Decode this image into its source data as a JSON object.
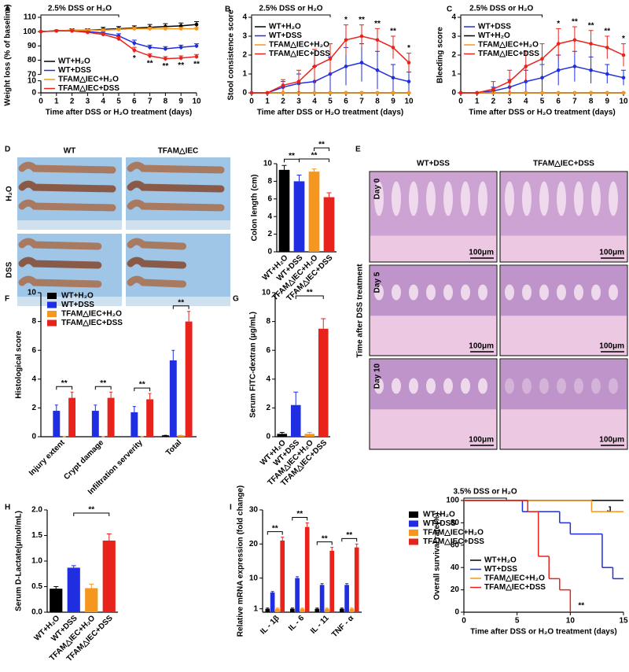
{
  "chart_data": [
    {
      "panel": "A",
      "type": "line",
      "ylabel": "Weight loss (% of baseline)",
      "xlabel": "Time after DSS or H₂O treatment (days)",
      "x": [
        0,
        1,
        2,
        3,
        4,
        5,
        6,
        7,
        8,
        9,
        10
      ],
      "xlim": [
        0,
        10
      ],
      "xticks": [
        0,
        1,
        2,
        3,
        4,
        5,
        6,
        7,
        8,
        9,
        10
      ],
      "ylim": [
        0,
        110
      ],
      "yticks": [
        0,
        10,
        70,
        80,
        90,
        100,
        110
      ],
      "axis_break": [
        10,
        70
      ],
      "period": {
        "text": "2.5% DSS or H₂O",
        "x": [
          0,
          5
        ]
      },
      "series": [
        {
          "name": "WT+H₂O",
          "color": "#000000",
          "values": [
            100,
            100.5,
            101,
            101,
            101.5,
            102,
            102.5,
            103,
            103.5,
            104,
            105
          ],
          "errors": [
            0,
            0.5,
            1,
            1,
            1.5,
            1.5,
            1.5,
            2,
            2,
            2,
            2
          ]
        },
        {
          "name": "WT+DSS",
          "color": "#1f2ee0",
          "values": [
            100,
            100.5,
            100.5,
            100,
            99,
            97,
            92,
            89,
            88,
            89,
            90
          ],
          "errors": [
            0,
            0.5,
            0.5,
            0.8,
            1,
            1.5,
            2,
            1.5,
            1.5,
            1.5,
            1.5
          ]
        },
        {
          "name": "TFAM△IEC+H₂O",
          "color": "#f5961e",
          "values": [
            100,
            100.5,
            101,
            101,
            101,
            101.5,
            102,
            102,
            102,
            102,
            102
          ],
          "errors": [
            0,
            0.5,
            0.5,
            0.5,
            0.5,
            0.5,
            1,
            1,
            1,
            1,
            1
          ]
        },
        {
          "name": "TFAM△IEC+DSS",
          "color": "#e8231c",
          "values": [
            100,
            100.5,
            100.5,
            99.5,
            98,
            95,
            87,
            83,
            81,
            81.5,
            82.5
          ],
          "errors": [
            0,
            0.5,
            0.5,
            0.8,
            1,
            1.5,
            2,
            1.5,
            1.5,
            1.5,
            1.5
          ]
        }
      ],
      "annotations": [
        {
          "text": "*",
          "x": 6
        },
        {
          "text": "**",
          "x": 7
        },
        {
          "text": "**",
          "x": 8
        },
        {
          "text": "**",
          "x": 9
        },
        {
          "text": "**",
          "x": 10
        }
      ]
    },
    {
      "panel": "B",
      "type": "line",
      "ylabel": "Stool consistence score",
      "xlabel": "Time after DSS or H₂O treatment (days)",
      "x": [
        0,
        1,
        2,
        3,
        4,
        5,
        6,
        7,
        8,
        9,
        10
      ],
      "xlim": [
        0,
        10
      ],
      "xticks": [
        0,
        1,
        2,
        3,
        4,
        5,
        6,
        7,
        8,
        9,
        10
      ],
      "ylim": [
        0,
        4
      ],
      "yticks": [
        0,
        1,
        2,
        3,
        4
      ],
      "period": {
        "text": "2.5% DSS or H₂O",
        "x": [
          0,
          5
        ]
      },
      "series": [
        {
          "name": "WT+H₂O",
          "color": "#000000",
          "values": [
            0,
            0,
            0,
            0,
            0,
            0,
            0,
            0,
            0,
            0,
            0
          ],
          "errors": [
            0,
            0,
            0,
            0,
            0,
            0,
            0,
            0,
            0,
            0,
            0
          ]
        },
        {
          "name": "WT+DSS",
          "color": "#1f2ee0",
          "values": [
            0,
            0,
            0.3,
            0.5,
            0.6,
            1.0,
            1.4,
            1.6,
            1.2,
            0.8,
            0.6
          ],
          "errors": [
            0,
            0,
            0.3,
            0.5,
            0.8,
            0.9,
            1.0,
            1.0,
            1.0,
            0.7,
            0.5
          ]
        },
        {
          "name": "TFAM△IEC+H₂O",
          "color": "#f5961e",
          "values": [
            0,
            0,
            0,
            0,
            0,
            0,
            0,
            0,
            0,
            0,
            0
          ],
          "errors": [
            0,
            0,
            0,
            0,
            0,
            0,
            0,
            0,
            0,
            0,
            0
          ]
        },
        {
          "name": "TFAM△IEC+DSS",
          "color": "#e8231c",
          "values": [
            0,
            0,
            0.4,
            0.6,
            1.4,
            1.8,
            2.8,
            3.0,
            2.8,
            2.4,
            1.6
          ],
          "errors": [
            0,
            0,
            0.3,
            0.6,
            0.9,
            0.8,
            0.8,
            0.6,
            0.6,
            0.6,
            0.5
          ]
        }
      ],
      "annotations": [
        {
          "text": "*",
          "x": 6
        },
        {
          "text": "**",
          "x": 7
        },
        {
          "text": "**",
          "x": 8
        },
        {
          "text": "**",
          "x": 9
        },
        {
          "text": "*",
          "x": 10
        }
      ]
    },
    {
      "panel": "C",
      "type": "line",
      "ylabel": "Bleeding score",
      "xlabel": "Time after DSS or H₂O treatment (days)",
      "x": [
        0,
        1,
        2,
        3,
        4,
        5,
        6,
        7,
        8,
        9,
        10
      ],
      "xlim": [
        0,
        10
      ],
      "xticks": [
        0,
        1,
        2,
        3,
        4,
        5,
        6,
        7,
        8,
        9,
        10
      ],
      "ylim": [
        0,
        4
      ],
      "yticks": [
        0,
        1,
        2,
        3,
        4
      ],
      "period": {
        "text": "2.5% DSS or H₂O",
        "x": [
          0,
          5
        ]
      },
      "series": [
        {
          "name": "WT+DSS",
          "color": "#1f2ee0",
          "values": [
            0,
            0,
            0.1,
            0.3,
            0.6,
            0.8,
            1.2,
            1.4,
            1.2,
            1.0,
            0.8
          ],
          "errors": [
            0,
            0,
            0.2,
            0.4,
            0.6,
            0.7,
            0.8,
            0.8,
            0.7,
            0.5,
            0.4
          ]
        },
        {
          "name": "WT+H₂O",
          "color": "#000000",
          "values": [
            0,
            0,
            0,
            0,
            0,
            0,
            0,
            0,
            0,
            0,
            0
          ],
          "errors": [
            0,
            0,
            0,
            0,
            0,
            0,
            0,
            0,
            0,
            0,
            0
          ]
        },
        {
          "name": "TFAM△IEC+H₂O",
          "color": "#f5961e",
          "values": [
            0,
            0,
            0,
            0,
            0,
            0,
            0,
            0,
            0,
            0,
            0
          ],
          "errors": [
            0,
            0,
            0,
            0,
            0,
            0,
            0,
            0,
            0,
            0,
            0
          ]
        },
        {
          "name": "TFAM△IEC+DSS",
          "color": "#e8231c",
          "values": [
            0,
            0,
            0.2,
            0.6,
            1.4,
            1.8,
            2.6,
            2.8,
            2.6,
            2.4,
            2.0
          ],
          "errors": [
            0,
            0,
            0.4,
            0.6,
            0.8,
            0.8,
            0.8,
            0.7,
            0.7,
            0.6,
            0.6
          ]
        }
      ],
      "annotations": [
        {
          "text": "*",
          "x": 6
        },
        {
          "text": "**",
          "x": 7
        },
        {
          "text": "**",
          "x": 8
        },
        {
          "text": "**",
          "x": 9
        },
        {
          "text": "*",
          "x": 10
        }
      ]
    },
    {
      "panel": "D",
      "type": "bar",
      "ylabel": "Colon length (cm)",
      "categories": [
        "WT+H₂O",
        "WT+DSS",
        "TFAM△IEC+H₂O",
        "TFAM△IEC+DSS"
      ],
      "values": [
        9.3,
        8.0,
        9.1,
        6.2
      ],
      "errors": [
        0.5,
        0.7,
        0.3,
        0.5
      ],
      "colors": [
        "#000000",
        "#1f2ee0",
        "#f5961e",
        "#e8231c"
      ],
      "ylim": [
        0,
        10
      ],
      "yticks": [
        0,
        2,
        4,
        6,
        8,
        10
      ],
      "brackets": [
        {
          "text": "**",
          "between": [
            0,
            1
          ]
        },
        {
          "text": "**",
          "between": [
            1,
            3
          ]
        },
        {
          "text": "**",
          "between": [
            2,
            3
          ]
        }
      ]
    },
    {
      "panel": "F",
      "type": "grouped_bar",
      "ylabel": "Histological score",
      "categories": [
        "Injury extent",
        "Crypt damage",
        "Infiltration serverity",
        "Total"
      ],
      "ylim": [
        0,
        10
      ],
      "yticks": [
        0,
        2,
        4,
        6,
        8,
        10
      ],
      "series": [
        {
          "name": "WT+H₂O",
          "color": "#000000",
          "values": [
            0,
            0,
            0,
            0.1
          ],
          "errors": [
            0,
            0,
            0,
            0
          ]
        },
        {
          "name": "WT+DSS",
          "color": "#1f2ee0",
          "values": [
            1.8,
            1.8,
            1.7,
            5.3
          ],
          "errors": [
            0.4,
            0.4,
            0.4,
            0.7
          ]
        },
        {
          "name": "TFAM△IEC+H₂O",
          "color": "#f5961e",
          "values": [
            0,
            0,
            0,
            0.1
          ],
          "errors": [
            0,
            0,
            0,
            0
          ]
        },
        {
          "name": "TFAM△IEC+DSS",
          "color": "#e8231c",
          "values": [
            2.7,
            2.7,
            2.6,
            8.0
          ],
          "errors": [
            0.4,
            0.4,
            0.4,
            0.7
          ]
        }
      ],
      "brackets": [
        {
          "text": "**",
          "category": 0,
          "series": [
            1,
            3
          ]
        },
        {
          "text": "**",
          "category": 1,
          "series": [
            1,
            3
          ]
        },
        {
          "text": "**",
          "category": 2,
          "series": [
            1,
            3
          ]
        },
        {
          "text": "**",
          "category": 3,
          "series": [
            1,
            3
          ]
        }
      ]
    },
    {
      "panel": "G",
      "type": "bar",
      "ylabel": "Serum FITC-dextran (μg/mL)",
      "categories": [
        "WT+H₂O",
        "WT+DSS",
        "TFAM△IEC+H₂O",
        "TFAM△IEC+DSS"
      ],
      "values": [
        0.2,
        2.2,
        0.2,
        7.5
      ],
      "errors": [
        0.1,
        0.9,
        0.1,
        0.7
      ],
      "colors": [
        "#000000",
        "#1f2ee0",
        "#f5961e",
        "#e8231c"
      ],
      "ylim": [
        0,
        10
      ],
      "yticks": [
        0,
        2,
        4,
        6,
        8,
        10
      ],
      "brackets": [
        {
          "text": "**",
          "between": [
            1,
            3
          ]
        }
      ]
    },
    {
      "panel": "H",
      "type": "bar",
      "ylabel": "Serum D-Lactate(μmol/mL)",
      "categories": [
        "WT+H₂O",
        "WT+DSS",
        "TFAM△IEC+H₂O",
        "TFAM△IEC+DSS"
      ],
      "values": [
        0.46,
        0.87,
        0.47,
        1.4
      ],
      "errors": [
        0.04,
        0.04,
        0.08,
        0.13
      ],
      "colors": [
        "#000000",
        "#1f2ee0",
        "#f5961e",
        "#e8231c"
      ],
      "ylim": [
        0,
        2
      ],
      "yticks": [
        {
          "value": 0,
          "label": "0.0"
        },
        0.5,
        {
          "value": 1,
          "label": "1.0"
        },
        1.5,
        {
          "value": 2,
          "label": "2.0"
        }
      ],
      "brackets": [
        {
          "text": "**",
          "between": [
            1,
            3
          ]
        }
      ]
    },
    {
      "panel": "I",
      "type": "grouped_bar",
      "ylabel": "Relative mRNA expression (fold change)",
      "categories": [
        "IL - 1β",
        "IL - 6",
        "IL - 11",
        "TNF - α"
      ],
      "ylim": [
        0,
        30
      ],
      "yticks": [
        1,
        10,
        20,
        30
      ],
      "series": [
        {
          "name": "WT+H₂O",
          "color": "#000000",
          "values": [
            1,
            1,
            1,
            1
          ],
          "errors": [
            0.2,
            0.2,
            0.2,
            0.2
          ]
        },
        {
          "name": "WT+DSS",
          "color": "#1f2ee0",
          "values": [
            5.8,
            10,
            8,
            8
          ],
          "errors": [
            0.3,
            0.4,
            0.4,
            0.4
          ]
        },
        {
          "name": "TFAM△IEC+H₂O",
          "color": "#f5961e",
          "values": [
            1,
            1,
            1,
            1
          ],
          "errors": [
            0.2,
            0.2,
            0.2,
            0.2
          ]
        },
        {
          "name": "TFAM△IEC+DSS",
          "color": "#e8231c",
          "values": [
            21,
            25,
            18,
            19
          ],
          "errors": [
            1,
            1.2,
            1,
            1
          ]
        }
      ],
      "brackets": [
        {
          "text": "**",
          "category": 0,
          "series": [
            0,
            3
          ]
        },
        {
          "text": "**",
          "category": 1,
          "series": [
            0,
            3
          ]
        },
        {
          "text": "**",
          "category": 2,
          "series": [
            0,
            3
          ]
        },
        {
          "text": "**",
          "category": 3,
          "series": [
            0,
            3
          ]
        }
      ]
    },
    {
      "panel": "J",
      "type": "step",
      "ylabel": "Overall survival rate(%)",
      "xlabel": "Time after DSS or H₂O treatment (days)",
      "xlim": [
        0,
        15
      ],
      "xticks": [
        0,
        5,
        10,
        15
      ],
      "ylim": [
        0,
        100
      ],
      "yticks": [
        0,
        20,
        40,
        60,
        80,
        100
      ],
      "period": {
        "text": "3.5% DSS or H₂O",
        "x": [
          0,
          4
        ]
      },
      "series": [
        {
          "name": "WT+H₂O",
          "color": "#000000",
          "x": [
            0,
            15
          ],
          "values": [
            100,
            100
          ]
        },
        {
          "name": "WT+DSS",
          "color": "#1f2ee0",
          "x": [
            0,
            5.5,
            9,
            10,
            13,
            14,
            15
          ],
          "values": [
            100,
            90,
            80,
            70,
            40,
            30,
            30
          ]
        },
        {
          "name": "TFAM△IEC+H₂O",
          "color": "#f5961e",
          "x": [
            0,
            12,
            15
          ],
          "values": [
            100,
            90,
            90
          ]
        },
        {
          "name": "TFAM△IEC+DSS",
          "color": "#e8231c",
          "x": [
            0,
            6,
            7,
            8,
            9,
            10
          ],
          "values": [
            100,
            90,
            50,
            30,
            20,
            0
          ]
        }
      ],
      "annotations": [
        {
          "text": "**",
          "x": 10
        }
      ]
    }
  ],
  "photos": {
    "D": {
      "columns": [
        "WT",
        "TFAM△IEC"
      ],
      "rows": [
        "H₂O",
        "DSS"
      ]
    },
    "E": {
      "panel": "E",
      "columns": [
        "WT+DSS",
        "TFAM△IEC+DSS"
      ],
      "rows": [
        "Day 0",
        "Day 5",
        "Day 10"
      ],
      "axis": "Time after DSS treatment",
      "scale": "100μm"
    }
  }
}
